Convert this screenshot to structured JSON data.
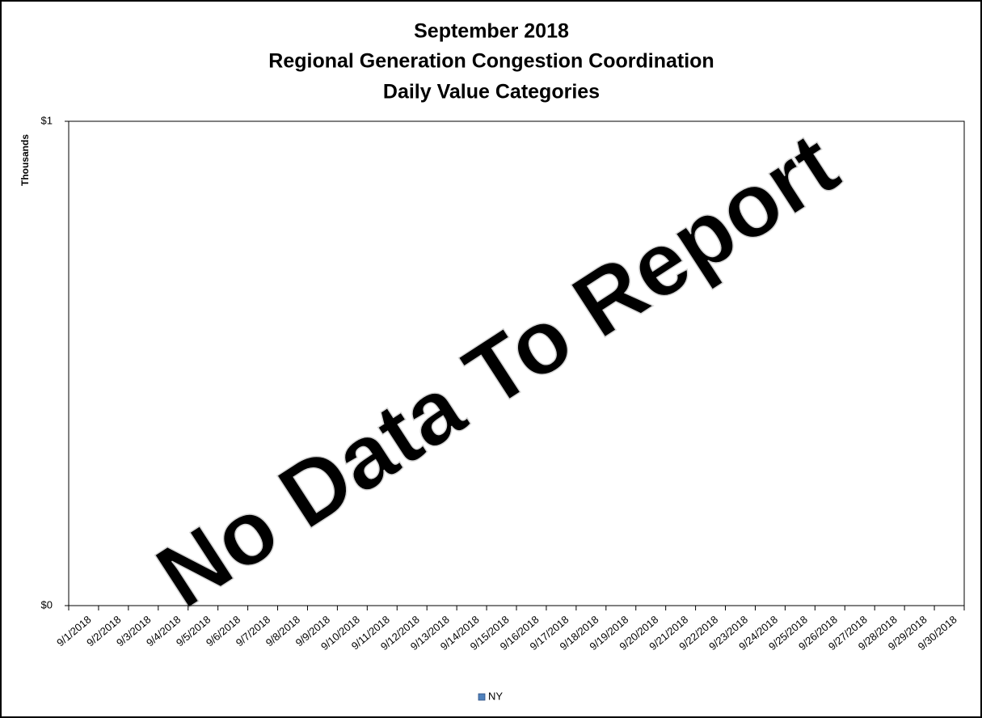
{
  "chart_data": {
    "type": "bar",
    "title": [
      "September 2018",
      "Regional Generation Congestion Coordination",
      "Daily Value Categories"
    ],
    "ylabel": "Thousands",
    "annotation": "No Data To Report",
    "categories": [
      "9/1/2018",
      "9/2/2018",
      "9/3/2018",
      "9/4/2018",
      "9/5/2018",
      "9/6/2018",
      "9/7/2018",
      "9/8/2018",
      "9/9/2018",
      "9/10/2018",
      "9/11/2018",
      "9/12/2018",
      "9/13/2018",
      "9/14/2018",
      "9/15/2018",
      "9/16/2018",
      "9/17/2018",
      "9/18/2018",
      "9/19/2018",
      "9/20/2018",
      "9/21/2018",
      "9/22/2018",
      "9/23/2018",
      "9/24/2018",
      "9/25/2018",
      "9/26/2018",
      "9/27/2018",
      "9/28/2018",
      "9/29/2018",
      "9/30/2018"
    ],
    "series": [
      {
        "name": "NY",
        "color": "#4f81bd",
        "values": [
          null,
          null,
          null,
          null,
          null,
          null,
          null,
          null,
          null,
          null,
          null,
          null,
          null,
          null,
          null,
          null,
          null,
          null,
          null,
          null,
          null,
          null,
          null,
          null,
          null,
          null,
          null,
          null,
          null,
          null
        ]
      }
    ],
    "ylim": [
      0,
      1
    ],
    "yticks": [
      {
        "value": 0,
        "label": "$0"
      },
      {
        "value": 1,
        "label": "$1"
      }
    ],
    "legend": "bottom"
  }
}
